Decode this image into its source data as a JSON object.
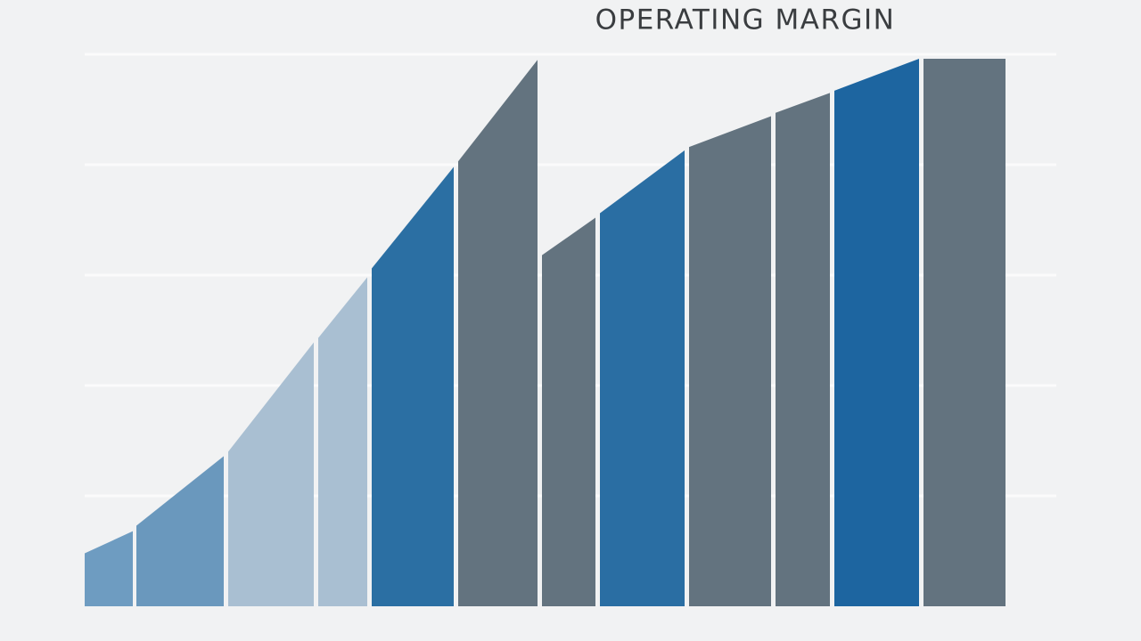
{
  "chart_data": {
    "type": "segmented-area",
    "title": "OPERATING MARGIN",
    "xlim": [
      0,
      103.3
    ],
    "ylim": [
      0,
      5
    ],
    "yticks": [
      1,
      2,
      3,
      4,
      5
    ],
    "grid": true,
    "series": [
      {
        "color": "#6e9cc1",
        "x": [
          0,
          5.4
        ],
        "values": [
          0.48,
          0.68
        ]
      },
      {
        "color": "#6a98bd",
        "x": [
          5.8,
          15.6
        ],
        "values": [
          0.73,
          1.36
        ]
      },
      {
        "color": "#a9bfd2",
        "x": [
          16.1,
          25.7
        ],
        "values": [
          1.4,
          2.39
        ]
      },
      {
        "color": "#a9bfd2",
        "x": [
          26.2,
          31.7
        ],
        "values": [
          2.43,
          2.98
        ]
      },
      {
        "color": "#2b6fa3",
        "x": [
          32.2,
          41.4
        ],
        "values": [
          3.06,
          3.98
        ]
      },
      {
        "color": "#63737f",
        "x": [
          41.9,
          50.8
        ],
        "values": [
          4.03,
          4.95
        ]
      },
      {
        "color": "#63737f",
        "x": [
          51.3,
          57.3
        ],
        "values": [
          3.18,
          3.52
        ]
      },
      {
        "color": "#2a6ea3",
        "x": [
          57.8,
          67.3
        ],
        "values": [
          3.56,
          4.13
        ]
      },
      {
        "color": "#63737f",
        "x": [
          67.8,
          77.0
        ],
        "values": [
          4.16,
          4.44
        ]
      },
      {
        "color": "#63737f",
        "x": [
          77.5,
          83.6
        ],
        "values": [
          4.47,
          4.65
        ]
      },
      {
        "color": "#1d65a0",
        "x": [
          84.1,
          93.6
        ],
        "values": [
          4.67,
          4.96
        ]
      },
      {
        "color": "#63737f",
        "x": [
          94.1,
          103.3
        ],
        "values": [
          4.96,
          4.96
        ]
      }
    ]
  }
}
